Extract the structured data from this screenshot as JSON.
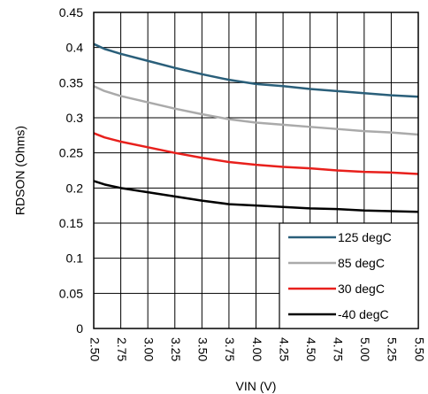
{
  "chart_data": {
    "type": "line",
    "title": "",
    "xlabel": "VIN (V)",
    "ylabel": "RDSON (Ohms)",
    "xlim": [
      2.5,
      5.5
    ],
    "ylim": [
      0,
      0.45
    ],
    "x_ticks": [
      "2.50",
      "2.75",
      "3.00",
      "3.25",
      "3.50",
      "3.75",
      "4.00",
      "4.25",
      "4.50",
      "4.75",
      "5.00",
      "5.25",
      "5.50"
    ],
    "y_ticks": [
      "0",
      "0.05",
      "0.1",
      "0.15",
      "0.2",
      "0.25",
      "0.3",
      "0.35",
      "0.4",
      "0.45"
    ],
    "grid": true,
    "legend_position": "bottom-right",
    "x": [
      2.5,
      2.6,
      2.75,
      3.0,
      3.25,
      3.5,
      3.75,
      4.0,
      4.25,
      4.5,
      4.75,
      5.0,
      5.25,
      5.5
    ],
    "series": [
      {
        "name": "125 degC",
        "color": "#2a5f7a",
        "values": [
          0.405,
          0.398,
          0.391,
          0.381,
          0.371,
          0.362,
          0.354,
          0.348,
          0.345,
          0.341,
          0.338,
          0.335,
          0.332,
          0.33
        ]
      },
      {
        "name": "85 degC",
        "color": "#aaaaaa",
        "values": [
          0.345,
          0.338,
          0.331,
          0.322,
          0.313,
          0.305,
          0.298,
          0.293,
          0.29,
          0.287,
          0.284,
          0.281,
          0.279,
          0.276
        ]
      },
      {
        "name": "30 degC",
        "color": "#e8201c",
        "values": [
          0.278,
          0.272,
          0.266,
          0.258,
          0.25,
          0.243,
          0.237,
          0.233,
          0.23,
          0.228,
          0.225,
          0.223,
          0.222,
          0.22
        ]
      },
      {
        "name": "-40 degC",
        "color": "#000000",
        "values": [
          0.21,
          0.205,
          0.2,
          0.194,
          0.188,
          0.182,
          0.177,
          0.175,
          0.173,
          0.171,
          0.17,
          0.168,
          0.167,
          0.166
        ]
      }
    ]
  }
}
